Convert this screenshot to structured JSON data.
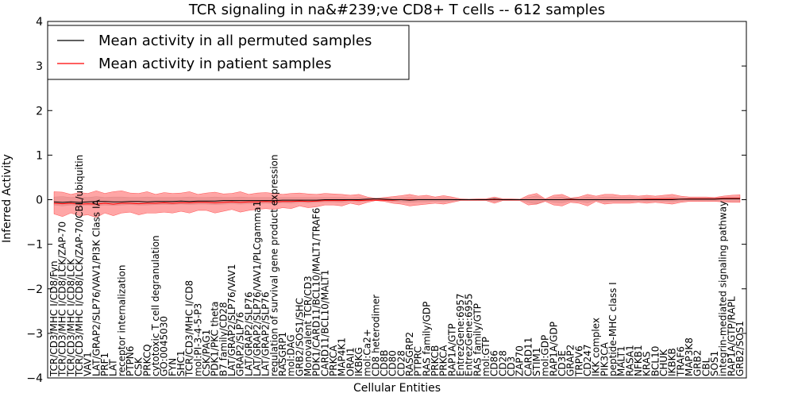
{
  "chart_data": {
    "type": "line",
    "title": "TCR signaling in na&#239;ve CD8+ T cells -- 612 samples",
    "xlabel": "Cellular Entities",
    "ylabel": "Inferred Activity",
    "ylim": [
      -4,
      4
    ],
    "yticks": [
      "4",
      "3",
      "2",
      "1",
      "0",
      "−1",
      "−2",
      "−3",
      "−4"
    ],
    "legend": {
      "position": "top-left",
      "entries": [
        {
          "label": "Mean activity in all permuted samples",
          "color": "#000000"
        },
        {
          "label": "Mean activity in patient samples",
          "color": "#ff0000"
        }
      ]
    },
    "categories": [
      "TCR/CD3/MHC I/CD8/Fyn",
      "TCR/CD3/MHC I/CD8/LCK/ZAP-70",
      "TCR/CD3/MHC I/CD8/LCK",
      "TCR/CD3/MHC I/CD8/LCK/ZAP-70/CBL/ubiquitin",
      "VAV1",
      "LAT/GRAP2/SLP76/VAV1/PI3K Class IA",
      "PRF1",
      "LAT",
      "receptor internalization",
      "PTPN6",
      "CSK",
      "PRKCQ",
      "cytotoxic T cell degranulation",
      "GO:0045030",
      "FYN",
      "SHC1",
      "TCR/CD3/MHC I/CD8",
      "mol:PI-3-4-5-P3",
      "CSK/PAG1",
      "PDK1/PKC theta",
      "B7 family/CD28",
      "LAT/GRAP2/SLP76/VAV1",
      "GRAP2/SLP76",
      "LAT/GRAP2/SLP76",
      "LAT/GRAP2/SLP76/VAV1/PLCgamma1",
      "LAT/GRAP2/SLP76",
      "regulation of survival gene product expression",
      "RASGRP1",
      "mol:DAG",
      "GRB2/SOS1/SHC",
      "Monovalent TCR/CD3",
      "PDK1/CARD11/BCL10/MALT1/TRAF6",
      "CARD11/BCL10/MALT1",
      "PRKCA",
      "MAP4K1",
      "ORAI1",
      "IKBKG",
      "mol:Ca2+",
      "CD8 heterodimer",
      "CD8B",
      "CD80",
      "CD28",
      "RASGRP2",
      "PTPRC",
      "RAS family/GDP",
      "PRKCB",
      "PRKCA",
      "RAP1A/GTP",
      "EntrezGene:6957",
      "EntrezGene:6955",
      "RAS family/GTP",
      "mol:GTP",
      "CD86",
      "CD28",
      "CD3",
      "ZAP70",
      "CARD11",
      "STIM1",
      "mol:GDP",
      "RAP1A/GDP",
      "CD3E",
      "GRAP2",
      "TRPV6",
      "CD247",
      "IKK complex",
      "PIK3CA",
      "peptide-MHC class I",
      "MALT1",
      "RASA1",
      "NFKB1",
      "KRAS",
      "BCL10",
      "CHUK",
      "IKBKB",
      "TRAF6",
      "MAP3K8",
      "GRB2",
      "CBL",
      "SOS1",
      "integrin-mediated signaling pathway",
      "RAP1A/GTP/RAPL",
      "GRB2/SOS1"
    ],
    "series": [
      {
        "name": "Mean activity in all permuted samples",
        "color": "#000000",
        "values": [
          -0.05,
          -0.06,
          -0.05,
          -0.06,
          -0.05,
          -0.04,
          -0.04,
          -0.05,
          -0.05,
          -0.04,
          -0.04,
          -0.05,
          -0.04,
          -0.04,
          -0.04,
          -0.03,
          -0.04,
          -0.03,
          -0.03,
          -0.03,
          -0.02,
          -0.02,
          -0.02,
          -0.02,
          -0.02,
          -0.02,
          -0.02,
          -0.01,
          -0.01,
          -0.01,
          -0.01,
          -0.01,
          0.0,
          0.0,
          0.0,
          0.0,
          0.0,
          0.01,
          0.02,
          0.01,
          0.0,
          0.0,
          -0.01,
          0.0,
          0.0,
          0.0,
          0.0,
          0.0,
          0.0,
          0.0,
          0.0,
          0.0,
          0.01,
          0.0,
          0.0,
          0.0,
          0.0,
          0.0,
          0.0,
          0.0,
          0.0,
          0.01,
          0.0,
          0.0,
          0.0,
          0.0,
          0.0,
          0.0,
          0.0,
          0.0,
          0.0,
          0.0,
          0.0,
          0.0,
          0.01,
          0.01,
          0.01,
          0.01,
          0.01,
          0.02,
          0.02,
          0.02
        ]
      },
      {
        "name": "Mean activity in patient samples",
        "color": "#ff0000",
        "values": [
          -0.08,
          -0.09,
          -0.08,
          -0.1,
          -0.09,
          -0.1,
          -0.08,
          -0.1,
          -0.08,
          -0.08,
          -0.09,
          -0.08,
          -0.08,
          -0.07,
          -0.08,
          -0.07,
          -0.07,
          -0.06,
          -0.06,
          -0.07,
          -0.06,
          -0.05,
          -0.06,
          -0.05,
          -0.05,
          -0.04,
          -0.05,
          -0.04,
          -0.04,
          -0.03,
          -0.04,
          -0.03,
          -0.02,
          -0.02,
          -0.02,
          -0.01,
          -0.02,
          -0.01,
          -0.01,
          -0.01,
          -0.01,
          0.0,
          0.0,
          0.0,
          0.0,
          0.0,
          0.0,
          0.0,
          0.0,
          0.0,
          0.0,
          0.0,
          0.0,
          0.0,
          0.0,
          0.0,
          0.0,
          0.0,
          0.0,
          0.0,
          0.0,
          0.0,
          0.0,
          0.0,
          0.0,
          0.0,
          0.0,
          0.0,
          0.0,
          0.0,
          0.01,
          0.01,
          0.01,
          0.01,
          0.01,
          0.02,
          0.02,
          0.02,
          0.02,
          0.03,
          0.03,
          0.03
        ]
      }
    ],
    "patient_band": {
      "name": "Patient samples range",
      "color": "#ff0000",
      "upper": [
        0.18,
        0.17,
        0.12,
        0.16,
        0.14,
        0.2,
        0.14,
        0.18,
        0.2,
        0.15,
        0.14,
        0.18,
        0.12,
        0.16,
        0.14,
        0.15,
        0.18,
        0.12,
        0.15,
        0.17,
        0.13,
        0.14,
        0.18,
        0.12,
        0.15,
        0.16,
        0.14,
        0.12,
        0.14,
        0.15,
        0.13,
        0.12,
        0.14,
        0.13,
        0.12,
        0.1,
        0.12,
        0.06,
        0.03,
        0.05,
        0.07,
        0.09,
        0.12,
        0.08,
        0.1,
        0.06,
        0.09,
        0.06,
        0.02,
        0.01,
        0.02,
        0.02,
        0.06,
        0.02,
        0.02,
        0.01,
        0.1,
        0.14,
        0.02,
        0.1,
        0.12,
        0.04,
        0.06,
        0.12,
        0.08,
        0.12,
        0.12,
        0.09,
        0.1,
        0.08,
        0.1,
        0.08,
        0.1,
        0.12,
        0.08,
        0.06,
        0.06,
        0.06,
        0.05,
        0.08,
        0.1,
        0.11
      ],
      "lower": [
        -0.32,
        -0.38,
        -0.3,
        -0.36,
        -0.34,
        -0.4,
        -0.3,
        -0.36,
        -0.3,
        -0.28,
        -0.34,
        -0.3,
        -0.3,
        -0.28,
        -0.3,
        -0.26,
        -0.3,
        -0.24,
        -0.24,
        -0.3,
        -0.26,
        -0.22,
        -0.28,
        -0.24,
        -0.22,
        -0.2,
        -0.22,
        -0.18,
        -0.2,
        -0.14,
        -0.18,
        -0.16,
        -0.12,
        -0.12,
        -0.14,
        -0.08,
        -0.12,
        -0.06,
        -0.02,
        -0.04,
        -0.08,
        -0.1,
        -0.14,
        -0.12,
        -0.1,
        -0.08,
        -0.1,
        -0.06,
        -0.02,
        -0.02,
        -0.02,
        -0.02,
        -0.08,
        -0.02,
        -0.02,
        -0.02,
        -0.12,
        -0.1,
        -0.04,
        -0.12,
        -0.14,
        -0.06,
        -0.08,
        -0.14,
        -0.04,
        -0.1,
        -0.08,
        -0.08,
        -0.08,
        -0.06,
        -0.08,
        -0.06,
        -0.08,
        -0.1,
        -0.06,
        -0.04,
        -0.04,
        -0.04,
        -0.04,
        -0.05,
        -0.06,
        -0.06
      ]
    },
    "permuted_band": {
      "name": "Permuted samples range",
      "color": "#bbbbbb",
      "upper": [
        0.06,
        0.07,
        0.05,
        0.06,
        0.05,
        0.07,
        0.05,
        0.06,
        0.06,
        0.05,
        0.05,
        0.06,
        0.05,
        0.05,
        0.05,
        0.05,
        0.06,
        0.05,
        0.05,
        0.06,
        0.05,
        0.05,
        0.06,
        0.05,
        0.05,
        0.05,
        0.05,
        0.05,
        0.05,
        0.05,
        0.05,
        0.05,
        0.05,
        0.05,
        0.05,
        0.04,
        0.05,
        0.03,
        0.02,
        0.03,
        0.03,
        0.04,
        0.05,
        0.04,
        0.04,
        0.03,
        0.04,
        0.03,
        0.01,
        0.01,
        0.01,
        0.01,
        0.04,
        0.01,
        0.01,
        0.01,
        0.05,
        0.09,
        0.01,
        0.05,
        0.06,
        0.02,
        0.03,
        0.06,
        0.04,
        0.06,
        0.06,
        0.05,
        0.05,
        0.04,
        0.05,
        0.04,
        0.05,
        0.06,
        0.04,
        0.04,
        0.04,
        0.04,
        0.04,
        0.05,
        0.06,
        0.06
      ],
      "lower": [
        -0.12,
        -0.14,
        -0.12,
        -0.13,
        -0.12,
        -0.14,
        -0.12,
        -0.13,
        -0.12,
        -0.11,
        -0.12,
        -0.12,
        -0.11,
        -0.11,
        -0.11,
        -0.1,
        -0.11,
        -0.1,
        -0.1,
        -0.11,
        -0.1,
        -0.09,
        -0.1,
        -0.09,
        -0.09,
        -0.08,
        -0.09,
        -0.07,
        -0.08,
        -0.06,
        -0.07,
        -0.06,
        -0.05,
        -0.05,
        -0.06,
        -0.04,
        -0.05,
        -0.03,
        -0.01,
        -0.02,
        -0.04,
        -0.05,
        -0.06,
        -0.05,
        -0.05,
        -0.04,
        -0.05,
        -0.03,
        -0.01,
        -0.01,
        -0.01,
        -0.01,
        -0.04,
        -0.01,
        -0.01,
        -0.01,
        -0.06,
        -0.1,
        -0.02,
        -0.06,
        -0.07,
        -0.03,
        -0.04,
        -0.07,
        -0.02,
        -0.05,
        -0.04,
        -0.04,
        -0.04,
        -0.03,
        -0.04,
        -0.03,
        -0.04,
        -0.05,
        -0.03,
        -0.02,
        -0.02,
        -0.02,
        -0.02,
        -0.03,
        -0.03,
        -0.03
      ]
    }
  }
}
